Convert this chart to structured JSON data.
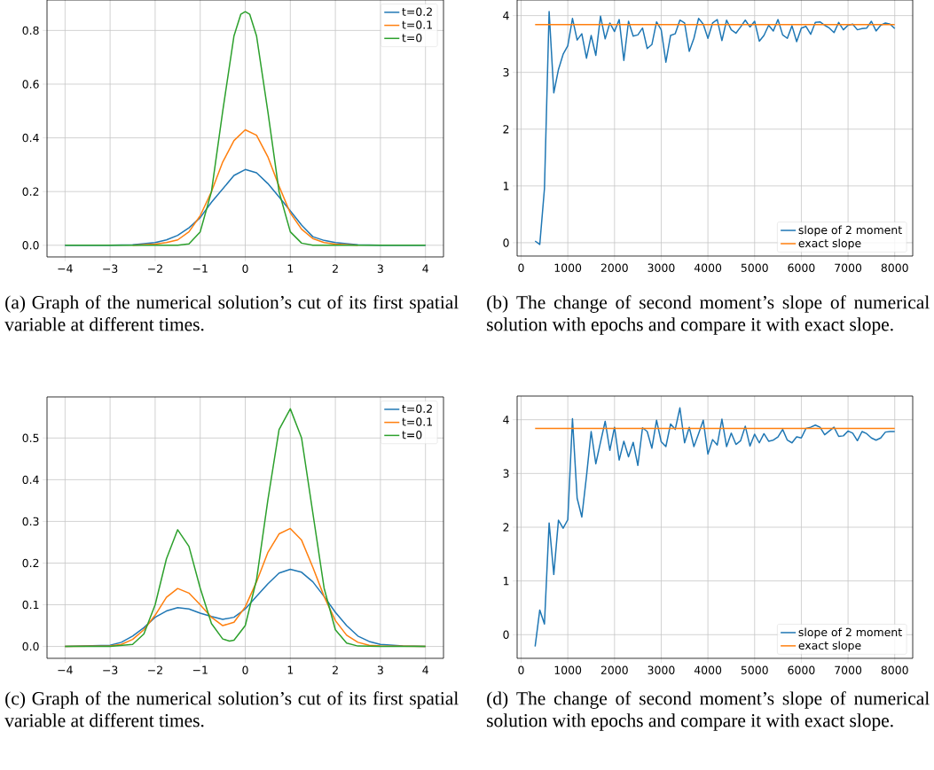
{
  "chart_data": [
    {
      "type": "line",
      "xlim": [
        -4.4,
        4.4
      ],
      "ylim": [
        -0.0435,
        0.9135
      ],
      "xticks": [
        {
          "value": -4,
          "label": "−4"
        },
        {
          "value": -3,
          "label": "−3"
        },
        {
          "value": -2,
          "label": "−2"
        },
        {
          "value": -1,
          "label": "−1"
        },
        0,
        1,
        2,
        3,
        4
      ],
      "yticks": [
        {
          "value": 0,
          "label": "0.0"
        },
        0.2,
        0.4,
        0.6,
        0.8
      ],
      "grid": true,
      "legend": "top right",
      "annotations": [
        "(a) Graph of the numerical solution’s cut of its first spatial variable at different times."
      ],
      "series": [
        {
          "name": "t=0.2",
          "color": "#1f77b4",
          "x": [
            -4,
            -3,
            -2.5,
            -2,
            -1.75,
            -1.5,
            -1.25,
            -1,
            -0.75,
            -0.5,
            -0.25,
            0,
            0.25,
            0.5,
            0.75,
            1,
            1.25,
            1.5,
            1.75,
            2,
            2.5,
            3,
            4
          ],
          "values": [
            0,
            0,
            0.002,
            0.01,
            0.02,
            0.037,
            0.065,
            0.103,
            0.16,
            0.21,
            0.26,
            0.282,
            0.27,
            0.23,
            0.18,
            0.128,
            0.075,
            0.032,
            0.018,
            0.01,
            0.002,
            0,
            0
          ]
        },
        {
          "name": "t=0.1",
          "color": "#ff7f0e",
          "x": [
            -2.5,
            -2,
            -1.75,
            -1.5,
            -1.25,
            -1,
            -0.75,
            -0.5,
            -0.25,
            0,
            0.25,
            0.5,
            0.75,
            1,
            1.25,
            1.5,
            1.75,
            2,
            2.5
          ],
          "values": [
            0,
            0.004,
            0.01,
            0.02,
            0.05,
            0.11,
            0.2,
            0.31,
            0.39,
            0.43,
            0.41,
            0.33,
            0.22,
            0.12,
            0.06,
            0.025,
            0.01,
            0.004,
            0
          ]
        },
        {
          "name": "t=0",
          "color": "#2ca02c",
          "x": [
            -4,
            -3,
            -2,
            -1.5,
            -1.25,
            -1,
            -0.75,
            -0.5,
            -0.25,
            -0.1,
            0,
            0.1,
            0.25,
            0.5,
            0.75,
            1,
            1.25,
            1.5,
            2,
            3,
            4
          ],
          "values": [
            0,
            0,
            0,
            0,
            0.005,
            0.05,
            0.2,
            0.5,
            0.78,
            0.86,
            0.87,
            0.86,
            0.78,
            0.5,
            0.2,
            0.05,
            0.008,
            0,
            0,
            0,
            0
          ]
        }
      ]
    },
    {
      "type": "line",
      "xlim": [
        -85,
        8385
      ],
      "ylim": [
        -0.235,
        4.275
      ],
      "xticks": [
        0,
        1000,
        2000,
        3000,
        4000,
        5000,
        6000,
        7000,
        8000
      ],
      "yticks": [
        0,
        1,
        2,
        3,
        4
      ],
      "grid": true,
      "legend": "bottom right",
      "annotations": [
        "(b) The change of second moment’s slope of numerical solution with epochs and compare it with exact slope."
      ],
      "series": [
        {
          "name": "slope of 2 moment",
          "color": "#1f77b4",
          "x": [
            300,
            400,
            500,
            600,
            700,
            800,
            900,
            1000,
            1100,
            1200,
            1300,
            1400,
            1500,
            1600,
            1700,
            1800,
            1900,
            2000,
            2100,
            2200,
            2300,
            2400,
            2500,
            2600,
            2700,
            2800,
            2900,
            3000,
            3100,
            3200,
            3300,
            3400,
            3500,
            3600,
            3700,
            3800,
            3900,
            4000,
            4100,
            4200,
            4300,
            4400,
            4500,
            4600,
            4700,
            4800,
            4900,
            5000,
            5100,
            5200,
            5300,
            5400,
            5500,
            5600,
            5700,
            5800,
            5900,
            6000,
            6100,
            6200,
            6300,
            6400,
            6500,
            6600,
            6700,
            6800,
            6900,
            7000,
            7100,
            7200,
            7300,
            7400,
            7500,
            7600,
            7700,
            7800,
            7900,
            8000
          ],
          "values": [
            0.03,
            -0.03,
            0.95,
            4.07,
            2.64,
            3.05,
            3.32,
            3.47,
            3.95,
            3.57,
            3.68,
            3.25,
            3.65,
            3.3,
            3.99,
            3.59,
            3.87,
            3.72,
            3.93,
            3.21,
            3.9,
            3.64,
            3.66,
            3.78,
            3.42,
            3.49,
            3.89,
            3.75,
            3.18,
            3.65,
            3.68,
            3.92,
            3.87,
            3.37,
            3.6,
            3.95,
            3.85,
            3.6,
            3.87,
            3.93,
            3.56,
            3.92,
            3.75,
            3.69,
            3.8,
            3.92,
            3.8,
            3.9,
            3.55,
            3.65,
            3.83,
            3.73,
            3.93,
            3.66,
            3.6,
            3.82,
            3.54,
            3.78,
            3.81,
            3.67,
            3.88,
            3.89,
            3.83,
            3.78,
            3.7,
            3.88,
            3.75,
            3.83,
            3.85,
            3.75,
            3.77,
            3.78,
            3.9,
            3.73,
            3.83,
            3.87,
            3.85,
            3.77
          ]
        },
        {
          "name": "exact slope",
          "color": "#ff7f0e",
          "x": [
            300,
            8000
          ],
          "values": [
            3.84,
            3.84
          ]
        }
      ]
    },
    {
      "type": "line",
      "xlim": [
        -4.4,
        4.4
      ],
      "ylim": [
        -0.0285,
        0.5985
      ],
      "xticks": [
        {
          "value": -4,
          "label": "−4"
        },
        {
          "value": -3,
          "label": "−3"
        },
        {
          "value": -2,
          "label": "−2"
        },
        {
          "value": -1,
          "label": "−1"
        },
        0,
        1,
        2,
        3,
        4
      ],
      "yticks": [
        {
          "value": 0,
          "label": "0.0"
        },
        0.1,
        0.2,
        0.3,
        0.4,
        0.5
      ],
      "grid": true,
      "legend": "top right",
      "annotations": [
        "(c) Graph of the numerical solution’s cut of its first spatial variable at different times."
      ],
      "series": [
        {
          "name": "t=0.2",
          "color": "#1f77b4",
          "x": [
            -4,
            -3,
            -2.75,
            -2.5,
            -2.25,
            -2,
            -1.75,
            -1.5,
            -1.25,
            -1,
            -0.75,
            -0.5,
            -0.25,
            0,
            0.25,
            0.5,
            0.75,
            1,
            1.25,
            1.5,
            1.75,
            2,
            2.25,
            2.5,
            2.75,
            3,
            3.5,
            4
          ],
          "values": [
            0,
            0.003,
            0.01,
            0.025,
            0.045,
            0.07,
            0.085,
            0.093,
            0.09,
            0.08,
            0.072,
            0.065,
            0.07,
            0.09,
            0.12,
            0.15,
            0.176,
            0.185,
            0.178,
            0.155,
            0.12,
            0.082,
            0.05,
            0.025,
            0.012,
            0.005,
            0.001,
            0
          ]
        },
        {
          "name": "t=0.1",
          "color": "#ff7f0e",
          "x": [
            -4,
            -3,
            -2.75,
            -2.5,
            -2.25,
            -2,
            -1.75,
            -1.5,
            -1.25,
            -1,
            -0.75,
            -0.5,
            -0.25,
            0,
            0.25,
            0.5,
            0.75,
            1,
            1.25,
            1.5,
            1.75,
            2,
            2.25,
            2.5,
            2.75,
            3,
            4
          ],
          "values": [
            0,
            0.001,
            0.005,
            0.017,
            0.04,
            0.075,
            0.118,
            0.139,
            0.128,
            0.1,
            0.07,
            0.05,
            0.058,
            0.095,
            0.155,
            0.225,
            0.27,
            0.283,
            0.255,
            0.19,
            0.12,
            0.062,
            0.027,
            0.01,
            0.003,
            0.001,
            0
          ]
        },
        {
          "name": "t=0",
          "color": "#2ca02c",
          "x": [
            -4,
            -3,
            -2.5,
            -2.25,
            -2,
            -1.75,
            -1.5,
            -1.25,
            -1,
            -0.75,
            -0.5,
            -0.35,
            -0.25,
            0,
            0.25,
            0.5,
            0.75,
            1,
            1.25,
            1.5,
            1.75,
            2,
            2.25,
            2.5,
            3,
            4
          ],
          "values": [
            0,
            0,
            0.005,
            0.03,
            0.1,
            0.21,
            0.28,
            0.24,
            0.14,
            0.055,
            0.018,
            0.013,
            0.015,
            0.05,
            0.16,
            0.35,
            0.52,
            0.57,
            0.5,
            0.32,
            0.14,
            0.04,
            0.008,
            0.001,
            0,
            0
          ]
        }
      ]
    },
    {
      "type": "line",
      "xlim": [
        -85,
        8385
      ],
      "ylim": [
        -0.44,
        4.44
      ],
      "xticks": [
        0,
        1000,
        2000,
        3000,
        4000,
        5000,
        6000,
        7000,
        8000
      ],
      "yticks": [
        0,
        1,
        2,
        3,
        4
      ],
      "grid": true,
      "legend": "bottom right",
      "annotations": [
        "(d) The change of second moment’s slope of numerical solution with epochs and compare it with exact slope."
      ],
      "series": [
        {
          "name": "slope of 2 moment",
          "color": "#1f77b4",
          "x": [
            300,
            400,
            500,
            600,
            700,
            800,
            900,
            1000,
            1100,
            1200,
            1300,
            1400,
            1500,
            1600,
            1700,
            1800,
            1900,
            2000,
            2100,
            2200,
            2300,
            2400,
            2500,
            2600,
            2700,
            2800,
            2900,
            3000,
            3100,
            3200,
            3300,
            3400,
            3500,
            3600,
            3700,
            3800,
            3900,
            4000,
            4100,
            4200,
            4300,
            4400,
            4500,
            4600,
            4700,
            4800,
            4900,
            5000,
            5100,
            5200,
            5300,
            5400,
            5500,
            5600,
            5700,
            5800,
            5900,
            6000,
            6100,
            6200,
            6300,
            6400,
            6500,
            6600,
            6700,
            6800,
            6900,
            7000,
            7100,
            7200,
            7300,
            7400,
            7500,
            7600,
            7700,
            7800,
            7900,
            8000
          ],
          "values": [
            -0.22,
            0.46,
            0.2,
            2.08,
            1.12,
            2.13,
            1.98,
            2.14,
            4.02,
            2.54,
            2.19,
            2.95,
            3.78,
            3.18,
            3.58,
            3.97,
            3.43,
            3.86,
            3.25,
            3.6,
            3.31,
            3.58,
            3.15,
            3.85,
            3.78,
            3.47,
            3.99,
            3.59,
            3.5,
            3.92,
            3.82,
            4.22,
            3.57,
            3.86,
            3.5,
            3.74,
            3.99,
            3.36,
            3.63,
            3.53,
            4.01,
            3.5,
            3.75,
            3.54,
            3.61,
            3.88,
            3.51,
            3.73,
            3.57,
            3.74,
            3.6,
            3.62,
            3.68,
            3.82,
            3.62,
            3.57,
            3.68,
            3.66,
            3.84,
            3.86,
            3.9,
            3.86,
            3.72,
            3.79,
            3.86,
            3.69,
            3.7,
            3.79,
            3.75,
            3.61,
            3.78,
            3.74,
            3.66,
            3.62,
            3.66,
            3.77,
            3.78,
            3.78
          ]
        },
        {
          "name": "exact slope",
          "color": "#ff7f0e",
          "x": [
            300,
            8000
          ],
          "values": [
            3.84,
            3.84
          ]
        }
      ]
    }
  ]
}
